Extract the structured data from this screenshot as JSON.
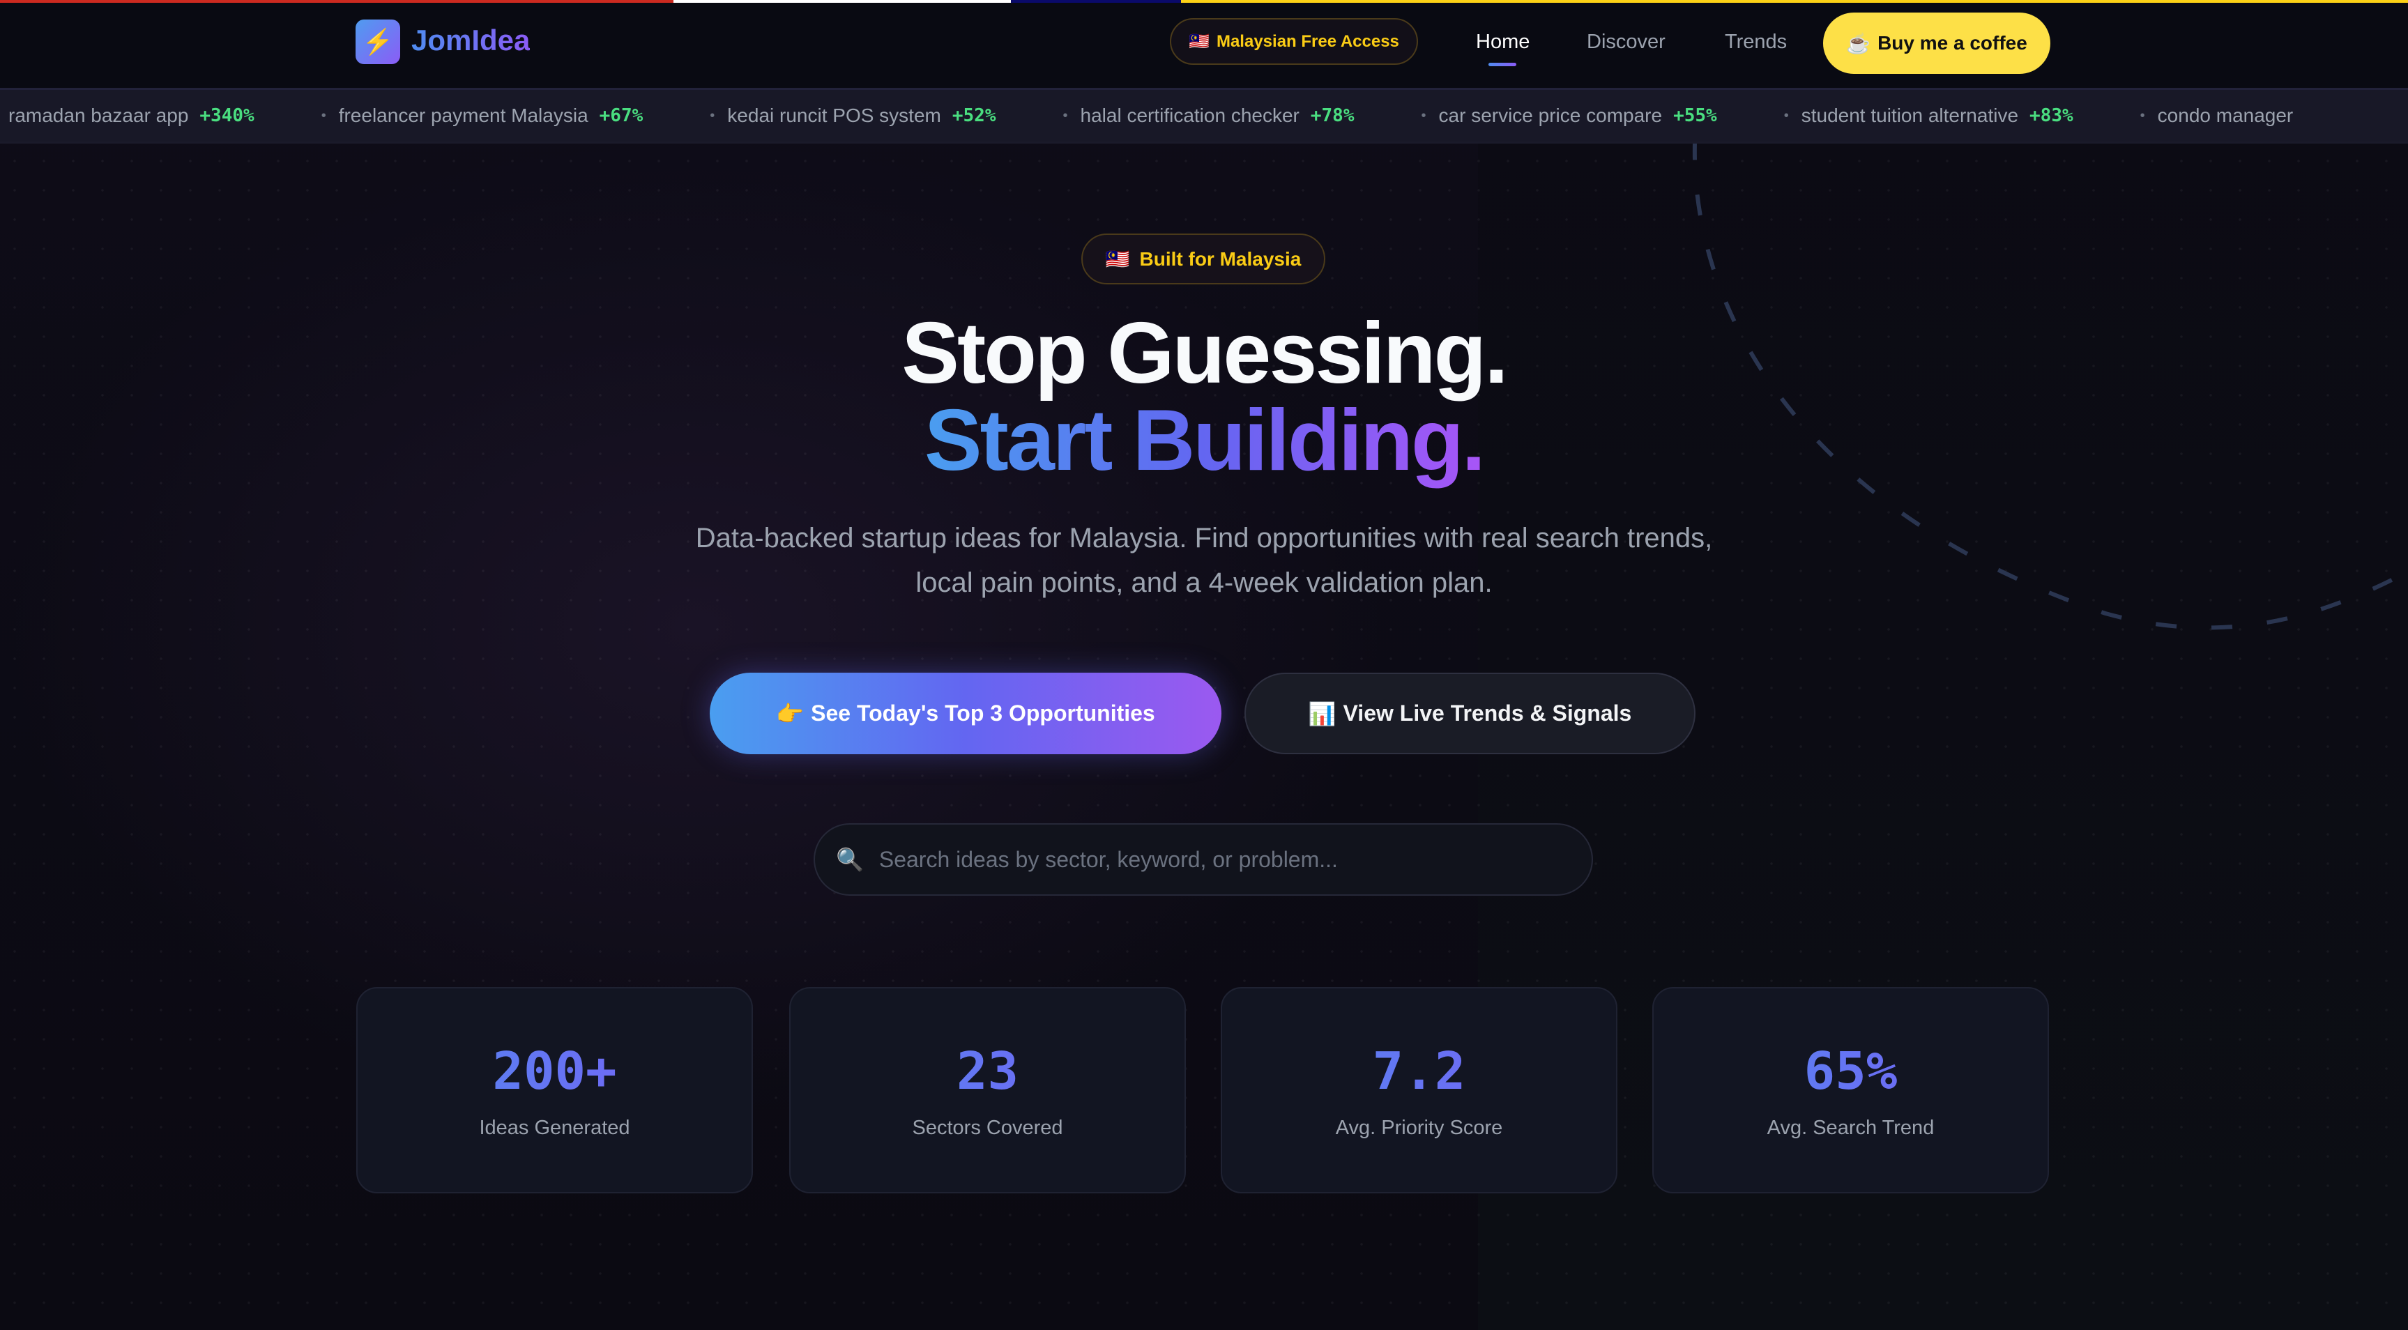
{
  "colors": {
    "flag_red": "#cc2a20",
    "flag_white": "#ffffff",
    "flag_navy": "#0a0a6a",
    "flag_yellow": "#fcd116",
    "accent_blue": "#4a9ef0",
    "accent_purple": "#8b5cf6",
    "coffee_yellow": "#fde047",
    "trend_green": "#4ade80"
  },
  "header": {
    "logo_icon": "lightning-icon",
    "brand": "JomIdea",
    "access_pill": {
      "icon": "malaysia-flag",
      "label": "Malaysian Free Access"
    },
    "nav": [
      {
        "label": "Home",
        "active": true
      },
      {
        "label": "Discover"
      },
      {
        "label": "Trends"
      }
    ],
    "coffee": {
      "icon": "coffee-icon",
      "label": "Buy me a coffee"
    }
  },
  "ticker": [
    {
      "term": "ramadan bazaar app",
      "change": "+340%"
    },
    {
      "term": "freelancer payment Malaysia",
      "change": "+67%"
    },
    {
      "term": "kedai runcit POS system",
      "change": "+52%"
    },
    {
      "term": "halal certification checker",
      "change": "+78%"
    },
    {
      "term": "car service price compare",
      "change": "+55%"
    },
    {
      "term": "student tuition alternative",
      "change": "+83%"
    },
    {
      "term": "condo manager",
      "change": ""
    }
  ],
  "hero": {
    "badge": "Built for Malaysia",
    "title_line1": "Stop Guessing.",
    "title_line2": "Start Building.",
    "subtitle_line1": "Data-backed startup ideas for Malaysia. Find opportunities with real search trends,",
    "subtitle_line2": "local pain points, and a 4-week validation plan.",
    "primary_cta": "See Today's Top 3 Opportunities",
    "secondary_cta": "View Live Trends & Signals",
    "search_placeholder": "Search ideas by sector, keyword, or problem..."
  },
  "stats": [
    {
      "value": "200+",
      "label": "Ideas Generated"
    },
    {
      "value": "23",
      "label": "Sectors Covered"
    },
    {
      "value": "7.2",
      "label": "Avg. Priority Score"
    },
    {
      "value": "65%",
      "label": "Avg. Search Trend"
    }
  ]
}
